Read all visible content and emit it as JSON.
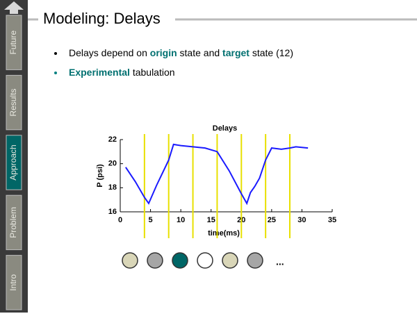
{
  "sidebar": {
    "tabs": [
      "Future",
      "Results",
      "Approach",
      "Problem",
      "Intro"
    ],
    "active": 2
  },
  "title": "Modeling: Delays",
  "bullets": [
    {
      "segments": [
        {
          "text": "Delays depend on ",
          "bold": false
        },
        {
          "text": "origin",
          "bold": true
        },
        {
          "text": " state and ",
          "bold": false
        },
        {
          "text": "target",
          "bold": true
        },
        {
          "text": " state (12)",
          "bold": false
        }
      ]
    },
    {
      "segments": [
        {
          "text": "Experimental",
          "bold": true
        },
        {
          "text": " tabulation",
          "bold": false
        }
      ]
    }
  ],
  "chart_data": {
    "type": "line",
    "title": "Delays",
    "x_label": "time(ms)",
    "y_label": "P (psi)",
    "x": [
      0.9,
      2.5,
      4.0,
      4.7,
      6,
      8,
      8.8,
      10,
      12,
      14,
      16,
      18,
      20,
      20.9,
      21.5,
      22.2,
      23,
      24,
      25,
      26.6,
      28,
      29,
      31
    ],
    "series": [
      {
        "name": "P",
        "color": "#1a1aff",
        "values": [
          19.7,
          18.5,
          17.2,
          16.7,
          18.2,
          20.3,
          21.6,
          21.5,
          21.4,
          21.3,
          21.0,
          19.4,
          17.5,
          16.7,
          17.6,
          18.1,
          18.8,
          20.3,
          21.3,
          21.2,
          21.3,
          21.4,
          21.3
        ]
      }
    ],
    "markers": {
      "color": "#e8e000",
      "x": [
        4,
        8,
        12,
        16,
        20,
        24,
        28
      ]
    },
    "xlim": [
      0,
      35
    ],
    "ylim": [
      16,
      22
    ],
    "xticks": [
      0,
      5,
      10,
      15,
      20,
      25,
      30,
      35
    ],
    "yticks": [
      16,
      18,
      20,
      22
    ]
  },
  "ellipsis": "..."
}
